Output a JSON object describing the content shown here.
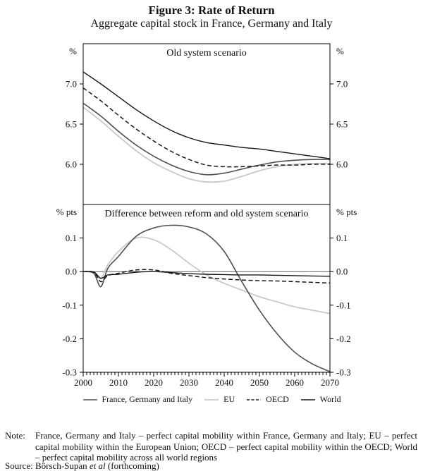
{
  "figure": {
    "title": "Figure 3: Rate of Return",
    "subtitle": "Aggregate capital stock in France, Germany and Italy"
  },
  "chart_data": {
    "type": "line",
    "xlim": [
      2000,
      2070
    ],
    "x_tick_labels": [
      2000,
      2010,
      2020,
      2030,
      2040,
      2050,
      2060,
      2070
    ],
    "panels": [
      {
        "id": "old",
        "title": "Old system scenario",
        "unit": "%",
        "ylim": [
          5.5,
          7.5
        ],
        "yticks": [
          7.0,
          6.5,
          6.0
        ],
        "zero_line": false,
        "x": [
          2000,
          2005,
          2010,
          2015,
          2020,
          2025,
          2030,
          2035,
          2040,
          2045,
          2050,
          2055,
          2060,
          2065,
          2070
        ],
        "series": [
          {
            "id": "eu",
            "name": "EU",
            "color": "#c9c9c9",
            "width": 1.8,
            "dash": null,
            "values": [
              6.71,
              6.54,
              6.35,
              6.17,
              6.02,
              5.91,
              5.82,
              5.78,
              5.79,
              5.85,
              5.92,
              5.97,
              6.0,
              6.01,
              6.01
            ]
          },
          {
            "id": "fgi",
            "name": "France, Germany and Italy",
            "color": "#4f4f4f",
            "width": 1.6,
            "dash": null,
            "values": [
              6.76,
              6.6,
              6.41,
              6.24,
              6.1,
              5.99,
              5.91,
              5.87,
              5.89,
              5.94,
              5.99,
              6.03,
              6.05,
              6.06,
              6.06
            ]
          },
          {
            "id": "oecd",
            "name": "OECD",
            "color": "#161616",
            "width": 1.5,
            "dash": "6,3.5",
            "values": [
              6.95,
              6.79,
              6.61,
              6.44,
              6.29,
              6.16,
              6.06,
              5.99,
              5.97,
              5.97,
              5.98,
              5.99,
              5.99,
              6.0,
              6.0
            ]
          },
          {
            "id": "world",
            "name": "World",
            "color": "#161616",
            "width": 1.4,
            "dash": null,
            "values": [
              7.15,
              7.0,
              6.84,
              6.68,
              6.54,
              6.42,
              6.33,
              6.27,
              6.24,
              6.21,
              6.19,
              6.16,
              6.13,
              6.1,
              6.07
            ]
          }
        ]
      },
      {
        "id": "diff",
        "title": "Difference between reform and old system scenario",
        "unit": "% pts",
        "ylim": [
          -0.3,
          0.2
        ],
        "yticks": [
          0.1,
          0.0,
          -0.1,
          -0.2,
          -0.3
        ],
        "zero_line": true,
        "x": [
          2000,
          2003,
          2005,
          2007,
          2010,
          2015,
          2020,
          2025,
          2030,
          2035,
          2040,
          2045,
          2050,
          2055,
          2060,
          2065,
          2070
        ],
        "series": [
          {
            "id": "eu",
            "name": "EU",
            "color": "#c9c9c9",
            "width": 1.8,
            "dash": null,
            "values": [
              0.0,
              -0.002,
              -0.02,
              0.02,
              0.06,
              0.1,
              0.095,
              0.065,
              0.025,
              -0.01,
              -0.035,
              -0.055,
              -0.075,
              -0.09,
              -0.105,
              -0.115,
              -0.125
            ]
          },
          {
            "id": "fgi",
            "name": "France, Germany and Italy",
            "color": "#4f4f4f",
            "width": 1.6,
            "dash": null,
            "values": [
              0.0,
              -0.005,
              -0.045,
              0.01,
              0.045,
              0.105,
              0.13,
              0.138,
              0.133,
              0.112,
              0.06,
              -0.03,
              -0.115,
              -0.185,
              -0.24,
              -0.275,
              -0.298
            ]
          },
          {
            "id": "world",
            "name": "World",
            "color": "#161616",
            "width": 1.4,
            "dash": null,
            "values": [
              0.0,
              -0.001,
              -0.02,
              -0.01,
              -0.008,
              -0.002,
              0.0,
              -0.003,
              -0.006,
              -0.008,
              -0.009,
              -0.01,
              -0.01,
              -0.011,
              -0.012,
              -0.013,
              -0.014
            ]
          },
          {
            "id": "oecd",
            "name": "OECD",
            "color": "#161616",
            "width": 1.5,
            "dash": "6,3.5",
            "values": [
              0.0,
              -0.002,
              -0.03,
              -0.012,
              -0.005,
              0.005,
              0.005,
              -0.005,
              -0.012,
              -0.018,
              -0.022,
              -0.025,
              -0.027,
              -0.028,
              -0.03,
              -0.032,
              -0.034
            ]
          }
        ]
      }
    ],
    "legend": [
      {
        "id": "fgi",
        "label": "France, Germany and Italy",
        "color": "#4f4f4f",
        "width": 1.6,
        "dash": null
      },
      {
        "id": "eu",
        "label": "EU",
        "color": "#c9c9c9",
        "width": 1.8,
        "dash": null
      },
      {
        "id": "oecd",
        "label": "OECD",
        "color": "#161616",
        "width": 1.5,
        "dash": "4,2.5"
      },
      {
        "id": "world",
        "label": "World",
        "color": "#161616",
        "width": 1.4,
        "dash": null
      }
    ],
    "legend_position": "bottom"
  },
  "note": {
    "label": "Note:",
    "text": "France, Germany and Italy – perfect capital mobility within France, Germany and Italy; EU – perfect capital mobility within the European Union; OECD – perfect capital mobility within the OECD; World – perfect capital mobility across all world regions"
  },
  "source": {
    "label": "Source:",
    "prefix": "Börsch-Supan ",
    "italic": "et al",
    "suffix": " (forthcoming)"
  }
}
